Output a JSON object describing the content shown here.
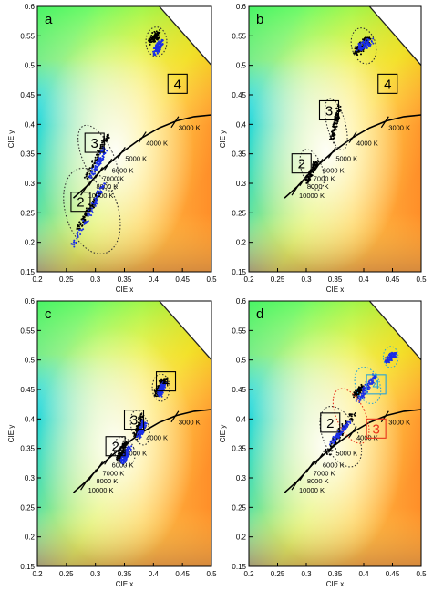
{
  "chart_data": [
    {
      "type": "scatter",
      "panel_letter": "a",
      "xlabel": "CIE x",
      "ylabel": "CIE y",
      "xlim": [
        0.2,
        0.5
      ],
      "ylim": [
        0.15,
        0.6
      ],
      "xticks": [
        "0.2",
        "0.25",
        "0.3",
        "0.35",
        "0.4",
        "0.45",
        "0.5"
      ],
      "yticks": [
        "0.15",
        "0.2",
        "0.25",
        "0.3",
        "0.35",
        "0.4",
        "0.45",
        "0.5",
        "0.55",
        "0.6"
      ],
      "planckian_locus": {
        "points": [
          [
            0.262,
            0.275
          ],
          [
            0.285,
            0.295
          ],
          [
            0.31,
            0.322
          ],
          [
            0.345,
            0.352
          ],
          [
            0.38,
            0.377
          ],
          [
            0.41,
            0.394
          ],
          [
            0.44,
            0.406
          ],
          [
            0.47,
            0.413
          ],
          [
            0.5,
            0.416
          ]
        ],
        "ticks": [
          {
            "label": "10000 K",
            "x": 0.281,
            "y": 0.289
          },
          {
            "label": "8000 K",
            "x": 0.295,
            "y": 0.305
          },
          {
            "label": "7000 K",
            "x": 0.306,
            "y": 0.318
          },
          {
            "label": "6000 K",
            "x": 0.322,
            "y": 0.332
          },
          {
            "label": "5000 K",
            "x": 0.345,
            "y": 0.352
          },
          {
            "label": "4000 K",
            "x": 0.381,
            "y": 0.378
          },
          {
            "label": "3000 K",
            "x": 0.437,
            "y": 0.404
          }
        ]
      },
      "series": [
        {
          "color": "#000000",
          "clusters": [
            {
              "x0": 0.27,
              "y0": 0.225,
              "x1": 0.308,
              "y1": 0.285,
              "w": 0.004
            },
            {
              "x0": 0.283,
              "y0": 0.305,
              "x1": 0.322,
              "y1": 0.385,
              "w": 0.004
            },
            {
              "x0": 0.396,
              "y0": 0.54,
              "x1": 0.408,
              "y1": 0.555,
              "w": 0.006
            }
          ]
        },
        {
          "color": "#1a2ee6",
          "clusters": [
            {
              "x0": 0.262,
              "y0": 0.195,
              "x1": 0.315,
              "y1": 0.3,
              "w": 0.004
            },
            {
              "x0": 0.292,
              "y0": 0.31,
              "x1": 0.318,
              "y1": 0.36,
              "w": 0.004
            },
            {
              "x0": 0.403,
              "y0": 0.52,
              "x1": 0.413,
              "y1": 0.54,
              "w": 0.005
            }
          ]
        }
      ],
      "groups": [
        {
          "label": "2",
          "color": "#000000",
          "box": [
            0.258,
            0.285
          ]
        },
        {
          "label": "3",
          "color": "#000000",
          "box": [
            0.282,
            0.385
          ]
        },
        {
          "label": "4",
          "color": "#000000",
          "box": [
            0.425,
            0.485
          ]
        }
      ],
      "ellipses": [
        {
          "cx": 0.294,
          "cy": 0.253,
          "rx": 0.045,
          "ry": 0.075,
          "rot": -18,
          "color": "#333333"
        },
        {
          "cx": 0.305,
          "cy": 0.343,
          "rx": 0.026,
          "ry": 0.06,
          "rot": -25,
          "color": "#333333"
        },
        {
          "cx": 0.405,
          "cy": 0.54,
          "rx": 0.018,
          "ry": 0.025,
          "rot": 0,
          "color": "#333333"
        }
      ]
    },
    {
      "type": "scatter",
      "panel_letter": "b",
      "xlabel": "CIE x",
      "ylabel": "CIE y",
      "xlim": [
        0.2,
        0.5
      ],
      "ylim": [
        0.15,
        0.6
      ],
      "xticks": [
        "0.2",
        "0.25",
        "0.3",
        "0.35",
        "0.4",
        "0.45",
        "0.5"
      ],
      "yticks": [
        "0.15",
        "0.2",
        "0.25",
        "0.3",
        "0.35",
        "0.4",
        "0.45",
        "0.5",
        "0.55",
        "0.6"
      ],
      "planckian_locus": {
        "points": [
          [
            0.262,
            0.275
          ],
          [
            0.285,
            0.295
          ],
          [
            0.31,
            0.322
          ],
          [
            0.345,
            0.352
          ],
          [
            0.38,
            0.377
          ],
          [
            0.41,
            0.394
          ],
          [
            0.44,
            0.406
          ],
          [
            0.47,
            0.413
          ],
          [
            0.5,
            0.416
          ]
        ],
        "ticks": [
          {
            "label": "10000 K",
            "x": 0.281,
            "y": 0.289
          },
          {
            "label": "8000 K",
            "x": 0.295,
            "y": 0.305
          },
          {
            "label": "7000 K",
            "x": 0.306,
            "y": 0.318
          },
          {
            "label": "6000 K",
            "x": 0.322,
            "y": 0.332
          },
          {
            "label": "5000 K",
            "x": 0.345,
            "y": 0.352
          },
          {
            "label": "4000 K",
            "x": 0.381,
            "y": 0.378
          },
          {
            "label": "3000 K",
            "x": 0.437,
            "y": 0.404
          }
        ]
      },
      "series": [
        {
          "color": "#000000",
          "clusters": [
            {
              "x0": 0.3,
              "y0": 0.3,
              "x1": 0.318,
              "y1": 0.337,
              "w": 0.004
            },
            {
              "x0": 0.344,
              "y0": 0.37,
              "x1": 0.357,
              "y1": 0.43,
              "w": 0.004
            },
            {
              "x0": 0.387,
              "y0": 0.52,
              "x1": 0.408,
              "y1": 0.545,
              "w": 0.006
            }
          ]
        },
        {
          "color": "#1a2ee6",
          "clusters": [
            {
              "x0": 0.39,
              "y0": 0.53,
              "x1": 0.412,
              "y1": 0.54,
              "w": 0.006
            }
          ]
        }
      ],
      "groups": [
        {
          "label": "2",
          "color": "#000000",
          "box": [
            0.275,
            0.35
          ]
        },
        {
          "label": "3",
          "color": "#000000",
          "box": [
            0.323,
            0.44
          ]
        },
        {
          "label": "4",
          "color": "#000000",
          "box": [
            0.425,
            0.485
          ]
        }
      ],
      "ellipses": [
        {
          "cx": 0.31,
          "cy": 0.323,
          "rx": 0.018,
          "ry": 0.036,
          "rot": -20,
          "color": "#333333"
        },
        {
          "cx": 0.352,
          "cy": 0.4,
          "rx": 0.016,
          "ry": 0.045,
          "rot": -15,
          "color": "#333333"
        },
        {
          "cx": 0.4,
          "cy": 0.533,
          "rx": 0.021,
          "ry": 0.031,
          "rot": -15,
          "color": "#333333"
        }
      ]
    },
    {
      "type": "scatter",
      "panel_letter": "c",
      "xlabel": "CIE x",
      "ylabel": "CIE y",
      "xlim": [
        0.2,
        0.5
      ],
      "ylim": [
        0.15,
        0.6
      ],
      "xticks": [
        "0.2",
        "0.25",
        "0.3",
        "0.35",
        "0.4",
        "0.45",
        "0.5"
      ],
      "yticks": [
        "0.15",
        "0.2",
        "0.25",
        "0.3",
        "0.35",
        "0.4",
        "0.45",
        "0.5",
        "0.55",
        "0.6"
      ],
      "planckian_locus": {
        "points": [
          [
            0.262,
            0.275
          ],
          [
            0.285,
            0.295
          ],
          [
            0.31,
            0.322
          ],
          [
            0.345,
            0.352
          ],
          [
            0.38,
            0.377
          ],
          [
            0.41,
            0.394
          ],
          [
            0.44,
            0.406
          ],
          [
            0.47,
            0.413
          ],
          [
            0.5,
            0.416
          ]
        ],
        "ticks": [
          {
            "label": "10000 K",
            "x": 0.281,
            "y": 0.289
          },
          {
            "label": "8000 K",
            "x": 0.295,
            "y": 0.305
          },
          {
            "label": "7000 K",
            "x": 0.306,
            "y": 0.318
          },
          {
            "label": "6000 K",
            "x": 0.322,
            "y": 0.332
          },
          {
            "label": "5000 K",
            "x": 0.345,
            "y": 0.352
          },
          {
            "label": "4000 K",
            "x": 0.381,
            "y": 0.378
          },
          {
            "label": "3000 K",
            "x": 0.437,
            "y": 0.404
          }
        ]
      },
      "series": [
        {
          "color": "#000000",
          "clusters": [
            {
              "x0": 0.34,
              "y0": 0.33,
              "x1": 0.352,
              "y1": 0.36,
              "w": 0.004
            },
            {
              "x0": 0.37,
              "y0": 0.37,
              "x1": 0.382,
              "y1": 0.405,
              "w": 0.005
            },
            {
              "x0": 0.405,
              "y0": 0.44,
              "x1": 0.418,
              "y1": 0.465,
              "w": 0.005
            }
          ]
        },
        {
          "color": "#1a2ee6",
          "clusters": [
            {
              "x0": 0.345,
              "y0": 0.325,
              "x1": 0.36,
              "y1": 0.352,
              "w": 0.004
            },
            {
              "x0": 0.375,
              "y0": 0.37,
              "x1": 0.385,
              "y1": 0.395,
              "w": 0.004
            },
            {
              "x0": 0.41,
              "y0": 0.44,
              "x1": 0.418,
              "y1": 0.46,
              "w": 0.004
            }
          ]
        }
      ],
      "groups": [
        {
          "label": "2",
          "color": "#000000",
          "box": [
            0.318,
            0.37
          ]
        },
        {
          "label": "3",
          "color": "#000000",
          "box": [
            0.35,
            0.415
          ]
        },
        {
          "label": "4",
          "color": "#000000",
          "box": [
            0.405,
            0.48
          ]
        }
      ],
      "ellipses": [
        {
          "cx": 0.35,
          "cy": 0.345,
          "rx": 0.017,
          "ry": 0.025,
          "rot": -20,
          "color": "#333333"
        },
        {
          "cx": 0.377,
          "cy": 0.385,
          "rx": 0.015,
          "ry": 0.03,
          "rot": -15,
          "color": "#333333"
        },
        {
          "cx": 0.413,
          "cy": 0.453,
          "rx": 0.015,
          "ry": 0.023,
          "rot": 0,
          "color": "#333333"
        }
      ]
    },
    {
      "type": "scatter",
      "panel_letter": "d",
      "xlabel": "CIE x",
      "ylabel": "CIE y",
      "xlim": [
        0.2,
        0.5
      ],
      "ylim": [
        0.15,
        0.6
      ],
      "xticks": [
        "0.2",
        "0.25",
        "0.3",
        "0.35",
        "0.4",
        "0.45",
        "0.5"
      ],
      "yticks": [
        "0.15",
        "0.2",
        "0.25",
        "0.3",
        "0.35",
        "0.4",
        "0.45",
        "0.5",
        "0.55",
        "0.6"
      ],
      "planckian_locus": {
        "points": [
          [
            0.262,
            0.275
          ],
          [
            0.285,
            0.295
          ],
          [
            0.31,
            0.322
          ],
          [
            0.345,
            0.352
          ],
          [
            0.38,
            0.377
          ],
          [
            0.41,
            0.394
          ],
          [
            0.44,
            0.406
          ],
          [
            0.47,
            0.413
          ],
          [
            0.5,
            0.416
          ]
        ],
        "ticks": [
          {
            "label": "10000 K",
            "x": 0.281,
            "y": 0.289
          },
          {
            "label": "8000 K",
            "x": 0.295,
            "y": 0.305
          },
          {
            "label": "7000 K",
            "x": 0.306,
            "y": 0.318
          },
          {
            "label": "6000 K",
            "x": 0.322,
            "y": 0.332
          },
          {
            "label": "5000 K",
            "x": 0.345,
            "y": 0.352
          },
          {
            "label": "4000 K",
            "x": 0.381,
            "y": 0.378
          },
          {
            "label": "3000 K",
            "x": 0.437,
            "y": 0.404
          }
        ]
      },
      "series": [
        {
          "color": "#000000",
          "clusters": [
            {
              "x0": 0.335,
              "y0": 0.34,
              "x1": 0.38,
              "y1": 0.405,
              "w": 0.006
            },
            {
              "x0": 0.385,
              "y0": 0.44,
              "x1": 0.398,
              "y1": 0.455,
              "w": 0.004
            }
          ]
        },
        {
          "color": "#1a2ee6",
          "clusters": [
            {
              "x0": 0.345,
              "y0": 0.36,
              "x1": 0.375,
              "y1": 0.395,
              "w": 0.004
            },
            {
              "x0": 0.39,
              "y0": 0.43,
              "x1": 0.42,
              "y1": 0.475,
              "w": 0.005
            },
            {
              "x0": 0.44,
              "y0": 0.5,
              "x1": 0.455,
              "y1": 0.51,
              "w": 0.005
            }
          ]
        }
      ],
      "groups": [
        {
          "label": "2",
          "color": "#000000",
          "box": [
            0.325,
            0.41
          ]
        },
        {
          "label": "3",
          "color": "#e8341c",
          "box": [
            0.405,
            0.4
          ]
        },
        {
          "label": "4",
          "color": "#2aa3d6",
          "box": [
            0.405,
            0.475
          ]
        }
      ],
      "ellipses": [
        {
          "cx": 0.36,
          "cy": 0.37,
          "rx": 0.03,
          "ry": 0.055,
          "rot": -25,
          "color": "#333333"
        },
        {
          "cx": 0.378,
          "cy": 0.405,
          "rx": 0.025,
          "ry": 0.05,
          "rot": -25,
          "color": "#e8341c"
        },
        {
          "cx": 0.407,
          "cy": 0.457,
          "rx": 0.021,
          "ry": 0.032,
          "rot": -20,
          "color": "#2aa3d6"
        },
        {
          "cx": 0.447,
          "cy": 0.505,
          "rx": 0.013,
          "ry": 0.018,
          "rot": 0,
          "color": "#2aa3d6"
        }
      ]
    }
  ]
}
